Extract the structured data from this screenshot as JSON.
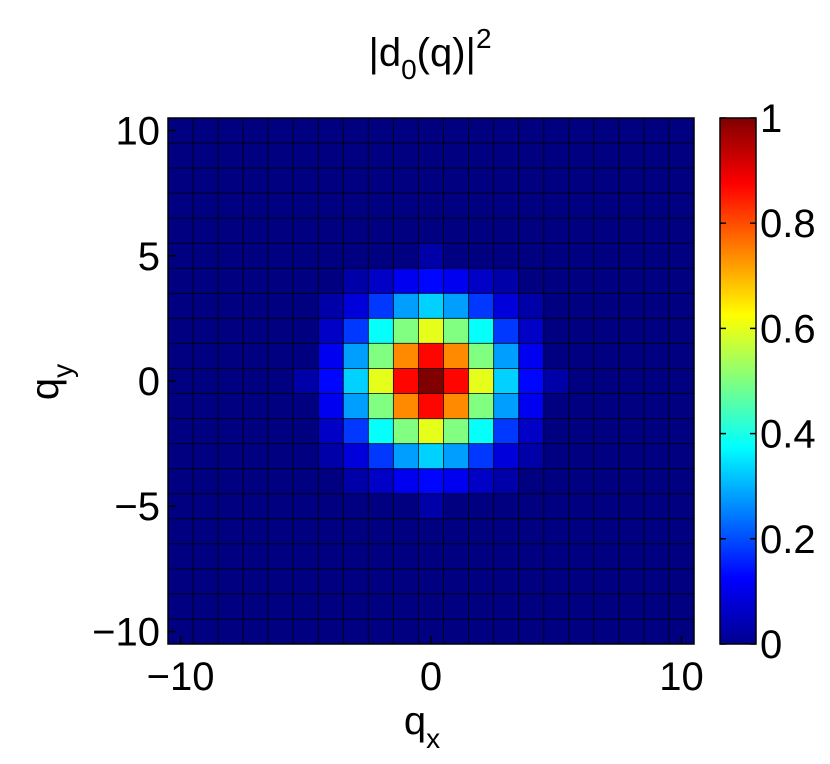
{
  "chart_data": {
    "type": "heatmap",
    "title": "|d0(q)|²",
    "title_parts": {
      "base": "|d",
      "sub": "0",
      "mid": "(q)|",
      "sup": "2"
    },
    "xlabel": "qx",
    "xlabel_parts": {
      "base": "q",
      "sub": "x"
    },
    "ylabel": "qy",
    "ylabel_parts": {
      "base": "q",
      "sub": "y"
    },
    "xlim": [
      -10.5,
      10.5
    ],
    "ylim": [
      -10.5,
      10.5
    ],
    "x_ticks": [
      {
        "value": -10,
        "label": "−10"
      },
      {
        "value": 0,
        "label": "0"
      },
      {
        "value": 10,
        "label": "10"
      }
    ],
    "y_ticks": [
      {
        "value": -10,
        "label": "−10"
      },
      {
        "value": -5,
        "label": "−5"
      },
      {
        "value": 0,
        "label": "0"
      },
      {
        "value": 5,
        "label": "5"
      },
      {
        "value": 10,
        "label": "10"
      }
    ],
    "grid_values": [
      -10,
      -9,
      -8,
      -7,
      -6,
      -5,
      -4,
      -3,
      -2,
      -1,
      0,
      1,
      2,
      3,
      4,
      5,
      6,
      7,
      8,
      9,
      10
    ],
    "cells": [
      {
        "x": 0,
        "y": 0,
        "v": 1.0
      },
      {
        "x": 1,
        "y": 0,
        "v": 0.87
      },
      {
        "x": -1,
        "y": 0,
        "v": 0.87
      },
      {
        "x": 0,
        "y": 1,
        "v": 0.87
      },
      {
        "x": 0,
        "y": -1,
        "v": 0.87
      },
      {
        "x": 1,
        "y": 1,
        "v": 0.74
      },
      {
        "x": -1,
        "y": 1,
        "v": 0.74
      },
      {
        "x": 1,
        "y": -1,
        "v": 0.74
      },
      {
        "x": -1,
        "y": -1,
        "v": 0.74
      },
      {
        "x": 2,
        "y": 0,
        "v": 0.6
      },
      {
        "x": -2,
        "y": 0,
        "v": 0.6
      },
      {
        "x": 0,
        "y": 2,
        "v": 0.6
      },
      {
        "x": 0,
        "y": -2,
        "v": 0.6
      },
      {
        "x": 2,
        "y": 1,
        "v": 0.5
      },
      {
        "x": -2,
        "y": 1,
        "v": 0.5
      },
      {
        "x": 2,
        "y": -1,
        "v": 0.5
      },
      {
        "x": -2,
        "y": -1,
        "v": 0.5
      },
      {
        "x": 1,
        "y": 2,
        "v": 0.5
      },
      {
        "x": -1,
        "y": 2,
        "v": 0.5
      },
      {
        "x": 1,
        "y": -2,
        "v": 0.5
      },
      {
        "x": -1,
        "y": -2,
        "v": 0.5
      },
      {
        "x": 2,
        "y": 2,
        "v": 0.38
      },
      {
        "x": -2,
        "y": 2,
        "v": 0.38
      },
      {
        "x": 2,
        "y": -2,
        "v": 0.38
      },
      {
        "x": -2,
        "y": -2,
        "v": 0.38
      },
      {
        "x": 3,
        "y": 0,
        "v": 0.33
      },
      {
        "x": -3,
        "y": 0,
        "v": 0.33
      },
      {
        "x": 0,
        "y": 3,
        "v": 0.33
      },
      {
        "x": 0,
        "y": -3,
        "v": 0.33
      },
      {
        "x": 3,
        "y": 1,
        "v": 0.28
      },
      {
        "x": -3,
        "y": 1,
        "v": 0.28
      },
      {
        "x": 3,
        "y": -1,
        "v": 0.28
      },
      {
        "x": -3,
        "y": -1,
        "v": 0.28
      },
      {
        "x": 1,
        "y": 3,
        "v": 0.28
      },
      {
        "x": -1,
        "y": 3,
        "v": 0.28
      },
      {
        "x": 1,
        "y": -3,
        "v": 0.28
      },
      {
        "x": -1,
        "y": -3,
        "v": 0.28
      },
      {
        "x": 3,
        "y": 2,
        "v": 0.18
      },
      {
        "x": -3,
        "y": 2,
        "v": 0.18
      },
      {
        "x": 3,
        "y": -2,
        "v": 0.18
      },
      {
        "x": -3,
        "y": -2,
        "v": 0.18
      },
      {
        "x": 2,
        "y": 3,
        "v": 0.18
      },
      {
        "x": -2,
        "y": 3,
        "v": 0.18
      },
      {
        "x": 2,
        "y": -3,
        "v": 0.18
      },
      {
        "x": -2,
        "y": -3,
        "v": 0.18
      },
      {
        "x": 4,
        "y": 0,
        "v": 0.13
      },
      {
        "x": -4,
        "y": 0,
        "v": 0.13
      },
      {
        "x": 0,
        "y": 4,
        "v": 0.13
      },
      {
        "x": 0,
        "y": -4,
        "v": 0.13
      },
      {
        "x": 4,
        "y": 1,
        "v": 0.11
      },
      {
        "x": -4,
        "y": 1,
        "v": 0.11
      },
      {
        "x": 4,
        "y": -1,
        "v": 0.11
      },
      {
        "x": -4,
        "y": -1,
        "v": 0.11
      },
      {
        "x": 1,
        "y": 4,
        "v": 0.11
      },
      {
        "x": -1,
        "y": 4,
        "v": 0.11
      },
      {
        "x": 1,
        "y": -4,
        "v": 0.11
      },
      {
        "x": -1,
        "y": -4,
        "v": 0.11
      },
      {
        "x": 3,
        "y": 3,
        "v": 0.09
      },
      {
        "x": -3,
        "y": 3,
        "v": 0.09
      },
      {
        "x": 3,
        "y": -3,
        "v": 0.09
      },
      {
        "x": -3,
        "y": -3,
        "v": 0.09
      },
      {
        "x": 4,
        "y": 2,
        "v": 0.07
      },
      {
        "x": -4,
        "y": 2,
        "v": 0.07
      },
      {
        "x": 4,
        "y": -2,
        "v": 0.07
      },
      {
        "x": -4,
        "y": -2,
        "v": 0.07
      },
      {
        "x": 2,
        "y": 4,
        "v": 0.07
      },
      {
        "x": -2,
        "y": 4,
        "v": 0.07
      },
      {
        "x": 2,
        "y": -4,
        "v": 0.07
      },
      {
        "x": -2,
        "y": -4,
        "v": 0.07
      },
      {
        "x": 5,
        "y": 0,
        "v": 0.04
      },
      {
        "x": -5,
        "y": 0,
        "v": 0.04
      },
      {
        "x": 0,
        "y": 5,
        "v": 0.04
      },
      {
        "x": 0,
        "y": -5,
        "v": 0.04
      },
      {
        "x": 4,
        "y": 3,
        "v": 0.04
      },
      {
        "x": -4,
        "y": 3,
        "v": 0.04
      },
      {
        "x": 4,
        "y": -3,
        "v": 0.04
      },
      {
        "x": -4,
        "y": -3,
        "v": 0.04
      },
      {
        "x": 3,
        "y": 4,
        "v": 0.04
      },
      {
        "x": -3,
        "y": 4,
        "v": 0.04
      },
      {
        "x": 3,
        "y": -4,
        "v": 0.04
      },
      {
        "x": -3,
        "y": -4,
        "v": 0.04
      }
    ],
    "background_value": 0.0,
    "colorbar": {
      "colormap": "jet",
      "range": [
        0,
        1
      ],
      "ticks": [
        {
          "value": 0,
          "label": "0"
        },
        {
          "value": 0.2,
          "label": "0.2"
        },
        {
          "value": 0.4,
          "label": "0.4"
        },
        {
          "value": 0.6,
          "label": "0.6"
        },
        {
          "value": 0.8,
          "label": "0.8"
        },
        {
          "value": 1,
          "label": "1"
        }
      ]
    },
    "grid": true,
    "legend": "colorbar-right"
  }
}
